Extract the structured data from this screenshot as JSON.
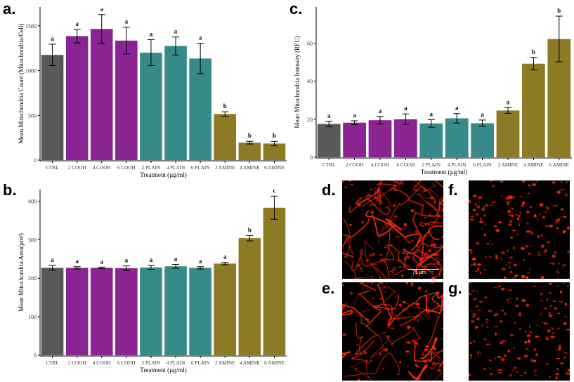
{
  "colors": {
    "ctrl": "#595959",
    "cooh": "#8a2492",
    "plain": "#378a8a",
    "amine": "#8c7a25",
    "micro_bg": "#050000",
    "micro_fg": "#ff2a10"
  },
  "panel_labels": {
    "a": "a.",
    "b": "b.",
    "c": "c.",
    "d": "d.",
    "e": "e.",
    "f": "f.",
    "g": "g."
  },
  "scale_bar_label": "75 µm",
  "chart_data": [
    {
      "id": "a",
      "type": "bar",
      "ylabel": "Mean Mitochondria Count (Mitochondria/Cell)",
      "xlabel": "Treatment (µg/ml)",
      "categories": [
        "CTRL",
        "2 COOH",
        "4 COOH",
        "6 COOH",
        "2 PLAIN",
        "4 PLAIN",
        "6 PLAIN",
        "2 AMINE",
        "4 AMINE",
        "6 AMINE"
      ],
      "groups": [
        "ctrl",
        "cooh",
        "cooh",
        "cooh",
        "plain",
        "plain",
        "plain",
        "amine",
        "amine",
        "amine"
      ],
      "values": [
        1175,
        1385,
        1465,
        1335,
        1200,
        1275,
        1135,
        515,
        195,
        185
      ],
      "errors": [
        120,
        75,
        160,
        150,
        145,
        100,
        170,
        25,
        15,
        25
      ],
      "letters": [
        "a",
        "a",
        "a",
        "a",
        "a",
        "a",
        "a",
        "b",
        "b",
        "b"
      ],
      "ylim": [
        0,
        1710
      ],
      "yticks": [
        0,
        500,
        1000,
        1500
      ]
    },
    {
      "id": "b",
      "type": "bar",
      "ylabel": "Mean Mitochondria Area(µm²)",
      "xlabel": "Treatment (µg/ml)",
      "categories": [
        "CTRL",
        "2 COOH",
        "4 COOH",
        "6 COOH",
        "2 PLAIN",
        "4 PLAIN",
        "6 PLAIN",
        "2 AMINE",
        "4 AMINE",
        "6 AMINE"
      ],
      "groups": [
        "ctrl",
        "cooh",
        "cooh",
        "cooh",
        "plain",
        "plain",
        "plain",
        "amine",
        "amine",
        "amine"
      ],
      "values": [
        227,
        227,
        227,
        226,
        228,
        231,
        227,
        238,
        304,
        383
      ],
      "errors": [
        6,
        3,
        2,
        6,
        5,
        5,
        3,
        3,
        7,
        30
      ],
      "letters": [
        "a",
        "a",
        "a",
        "a",
        "a",
        "a",
        "a",
        "a",
        "b",
        "c"
      ],
      "ylim": [
        0,
        430
      ],
      "yticks": [
        0,
        100,
        200,
        300,
        400
      ]
    },
    {
      "id": "c",
      "type": "bar",
      "ylabel": "Mean Mitochondria Intensity (RFU)",
      "xlabel": "Treatment (µg/ml)",
      "categories": [
        "CTRL",
        "2 COOH",
        "4 COOH",
        "6 COOH",
        "2 PLAIN",
        "4 PLAIN",
        "6 PLAIN",
        "2 AMINE",
        "4 AMINE",
        "6 AMINE"
      ],
      "groups": [
        "ctrl",
        "cooh",
        "cooh",
        "cooh",
        "plain",
        "plain",
        "plain",
        "amine",
        "amine",
        "amine"
      ],
      "values": [
        17.5,
        18.2,
        19.5,
        20.0,
        17.8,
        20.5,
        17.9,
        24.6,
        49.2,
        62.2
      ],
      "errors": [
        1.5,
        1.0,
        2.0,
        2.8,
        2.0,
        2.5,
        1.7,
        1.5,
        3.3,
        12.0
      ],
      "letters": [
        "a",
        "a",
        "a",
        "a",
        "a",
        "a",
        "a",
        "a",
        "b",
        "b"
      ],
      "ylim": [
        0,
        79
      ],
      "yticks": [
        0,
        20,
        40,
        60
      ]
    }
  ]
}
